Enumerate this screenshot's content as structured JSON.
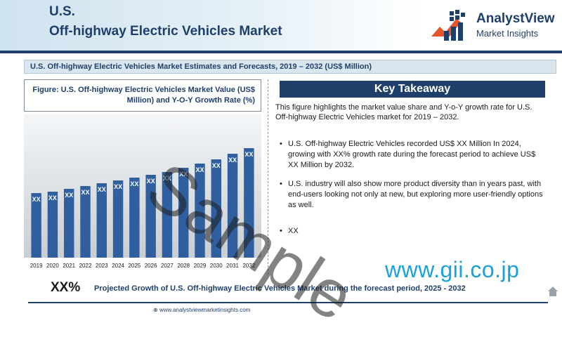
{
  "header": {
    "title_line1": "U.S.",
    "title_line2": "Off-highway Electric Vehicles Market",
    "logo_name": "AnalystView",
    "logo_sub": "Market Insights",
    "accent_color": "#1f3f6b"
  },
  "section": {
    "title": "U.S. Off-highway Electric Vehicles Market Estimates and Forecasts, 2019 – 2032 (US$ Million)"
  },
  "figure": {
    "title": "Figure: U.S. Off-highway Electric Vehicles Market Value (US$ Million) and Y-O-Y Growth Rate (%)"
  },
  "chart_data": {
    "type": "bar",
    "categories": [
      "2019",
      "2020",
      "2021",
      "2022",
      "2023",
      "2024",
      "2025",
      "2026",
      "2027",
      "2028",
      "2029",
      "2030",
      "2031",
      "2032"
    ],
    "values": [
      46,
      47,
      49,
      51,
      53,
      55,
      57,
      59,
      61,
      64,
      67,
      70,
      74,
      78
    ],
    "data_labels": [
      "XX",
      "XX",
      "XX",
      "XX",
      "XX",
      "XX",
      "XX",
      "XX",
      "XX",
      "XX",
      "XX",
      "XX",
      "XX",
      "XX"
    ],
    "bar_color": "#2f5f9e",
    "grid": false,
    "ylim": [
      0,
      100
    ]
  },
  "key_takeaway": {
    "title": "Key Takeaway",
    "intro": "This figure highlights the market value share and Y-o-Y growth rate for U.S. Off-highway Electric Vehicles market for 2019 – 2032.",
    "items": [
      "U.S. Off-highway Electric Vehicles recorded US$ XX Million In 2024, growing with XX% growth rate during the forecast period to achieve US$ XX Million by 2032.",
      "U.S. industry will also show more product diversity than in years past, with end-users looking not only at new, but exploring more user-friendly options as well.",
      "XX"
    ]
  },
  "bottom": {
    "xx_pct": "XX%",
    "growth_text": "Projected Growth of U.S. Off-highway Electric Vehicles Market during the forecast period, 2025 - 2032",
    "footer_url": "www.analystviewmarketinsights.com"
  },
  "watermarks": {
    "sample": "Sample",
    "gii": "www.gii.co.jp"
  }
}
